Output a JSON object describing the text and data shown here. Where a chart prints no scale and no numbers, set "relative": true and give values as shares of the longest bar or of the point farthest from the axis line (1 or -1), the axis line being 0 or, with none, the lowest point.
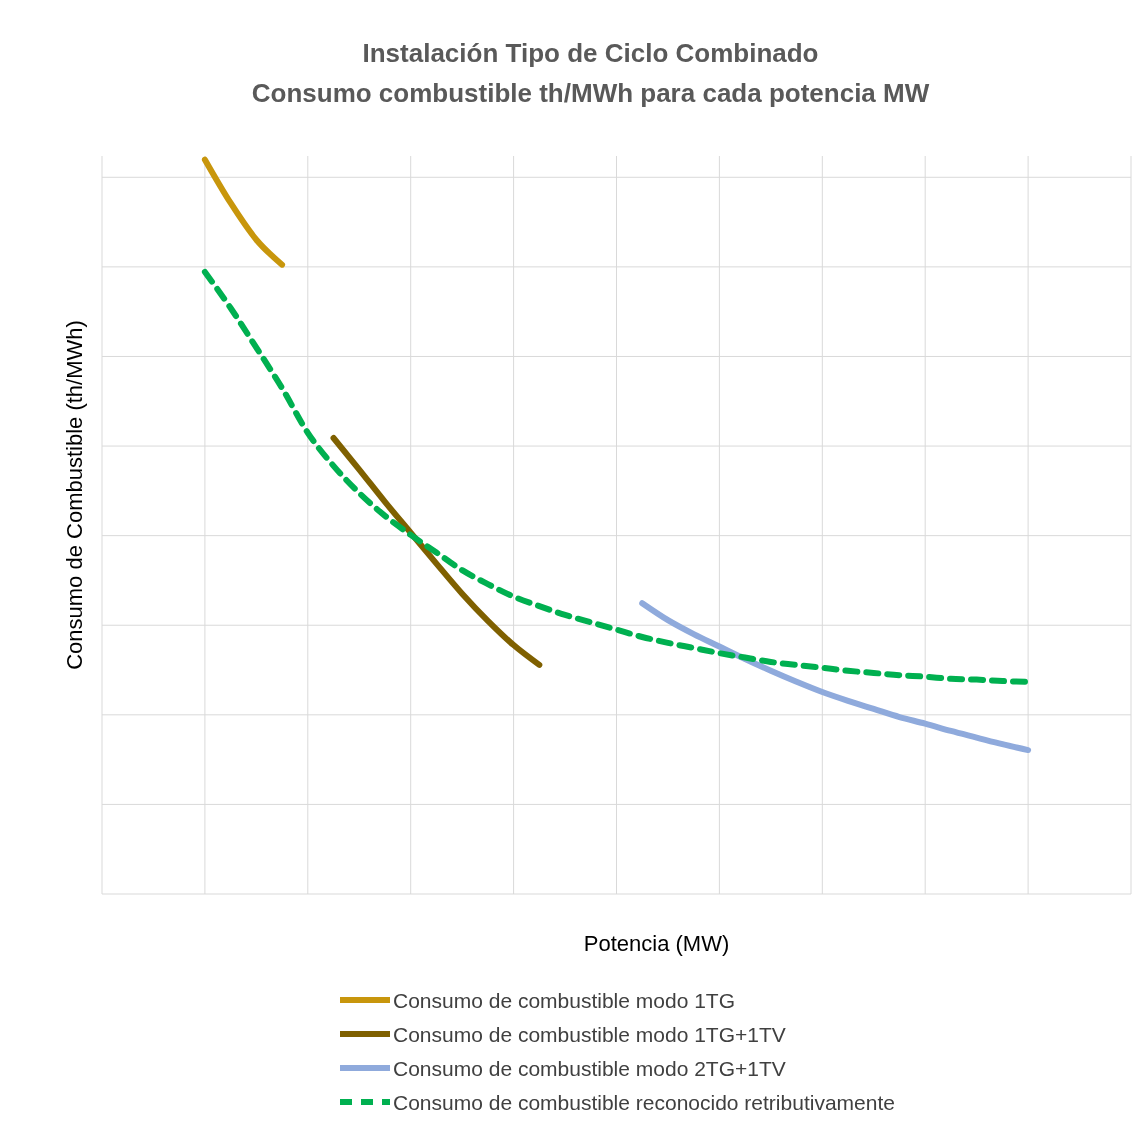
{
  "chart_data": {
    "type": "line",
    "title": "Instalación Tipo de Ciclo Combinado\nConsumo combustible th/MWh para cada potencia MW",
    "xlabel": "Potencia (MW)",
    "ylabel": "Consumo de Combustible  (th/MWh)",
    "relative": true,
    "grid": true,
    "legend": "bottom",
    "categories": [
      null,
      null,
      null,
      null,
      null,
      null,
      null,
      null,
      null,
      null,
      null,
      null,
      null,
      null,
      null,
      null,
      null,
      null,
      null,
      null,
      null,
      null,
      null,
      null,
      null,
      null,
      null,
      null,
      null,
      null,
      null,
      null,
      null,
      null,
      null,
      null,
      null,
      null,
      null,
      null,
      null
    ],
    "series": [
      {
        "name": "Consumo de combustible modo 1TG",
        "color": "#c8960c",
        "values": [
          null,
          null,
          null,
          null,
          1.0,
          0.941,
          0.891,
          0.857,
          null,
          null,
          null,
          null,
          null,
          null,
          null,
          null,
          null,
          null,
          null,
          null,
          null,
          null,
          null,
          null,
          null,
          null,
          null,
          null,
          null,
          null,
          null,
          null,
          null,
          null,
          null,
          null,
          null,
          null,
          null,
          null,
          null
        ]
      },
      {
        "name": "Consumo de combustible modo 1TG+1TV",
        "color": "#7f6000",
        "values": [
          null,
          null,
          null,
          null,
          null,
          null,
          null,
          null,
          null,
          0.621,
          0.578,
          0.534,
          0.492,
          0.45,
          0.409,
          0.372,
          0.339,
          0.312,
          null,
          null,
          null,
          null,
          null,
          null,
          null,
          null,
          null,
          null,
          null,
          null,
          null,
          null,
          null,
          null,
          null,
          null,
          null,
          null,
          null,
          null,
          null
        ]
      },
      {
        "name": "Consumo de combustible modo 2TG+1TV",
        "color": "#8faadc",
        "values": [
          null,
          null,
          null,
          null,
          null,
          null,
          null,
          null,
          null,
          null,
          null,
          null,
          null,
          null,
          null,
          null,
          null,
          null,
          null,
          null,
          null,
          0.396,
          0.373,
          0.354,
          0.337,
          0.32,
          0.304,
          0.289,
          0.275,
          0.263,
          0.252,
          0.241,
          0.232,
          0.222,
          0.213,
          0.204,
          0.196,
          null,
          null,
          null,
          null
        ]
      },
      {
        "name": "Consumo de combustible reconocido retributivamente",
        "color": "#00b050",
        "line_style": "dashed",
        "values": [
          null,
          null,
          null,
          null,
          0.847,
          0.798,
          0.744,
          0.689,
          0.628,
          0.583,
          0.546,
          0.515,
          0.489,
          0.465,
          0.441,
          0.422,
          0.405,
          0.392,
          0.38,
          0.37,
          0.36,
          0.35,
          0.342,
          0.335,
          0.328,
          0.322,
          0.316,
          0.312,
          0.308,
          0.304,
          0.301,
          0.298,
          0.296,
          0.293,
          0.292,
          0.29,
          0.289,
          null,
          null,
          null,
          null
        ]
      }
    ]
  }
}
